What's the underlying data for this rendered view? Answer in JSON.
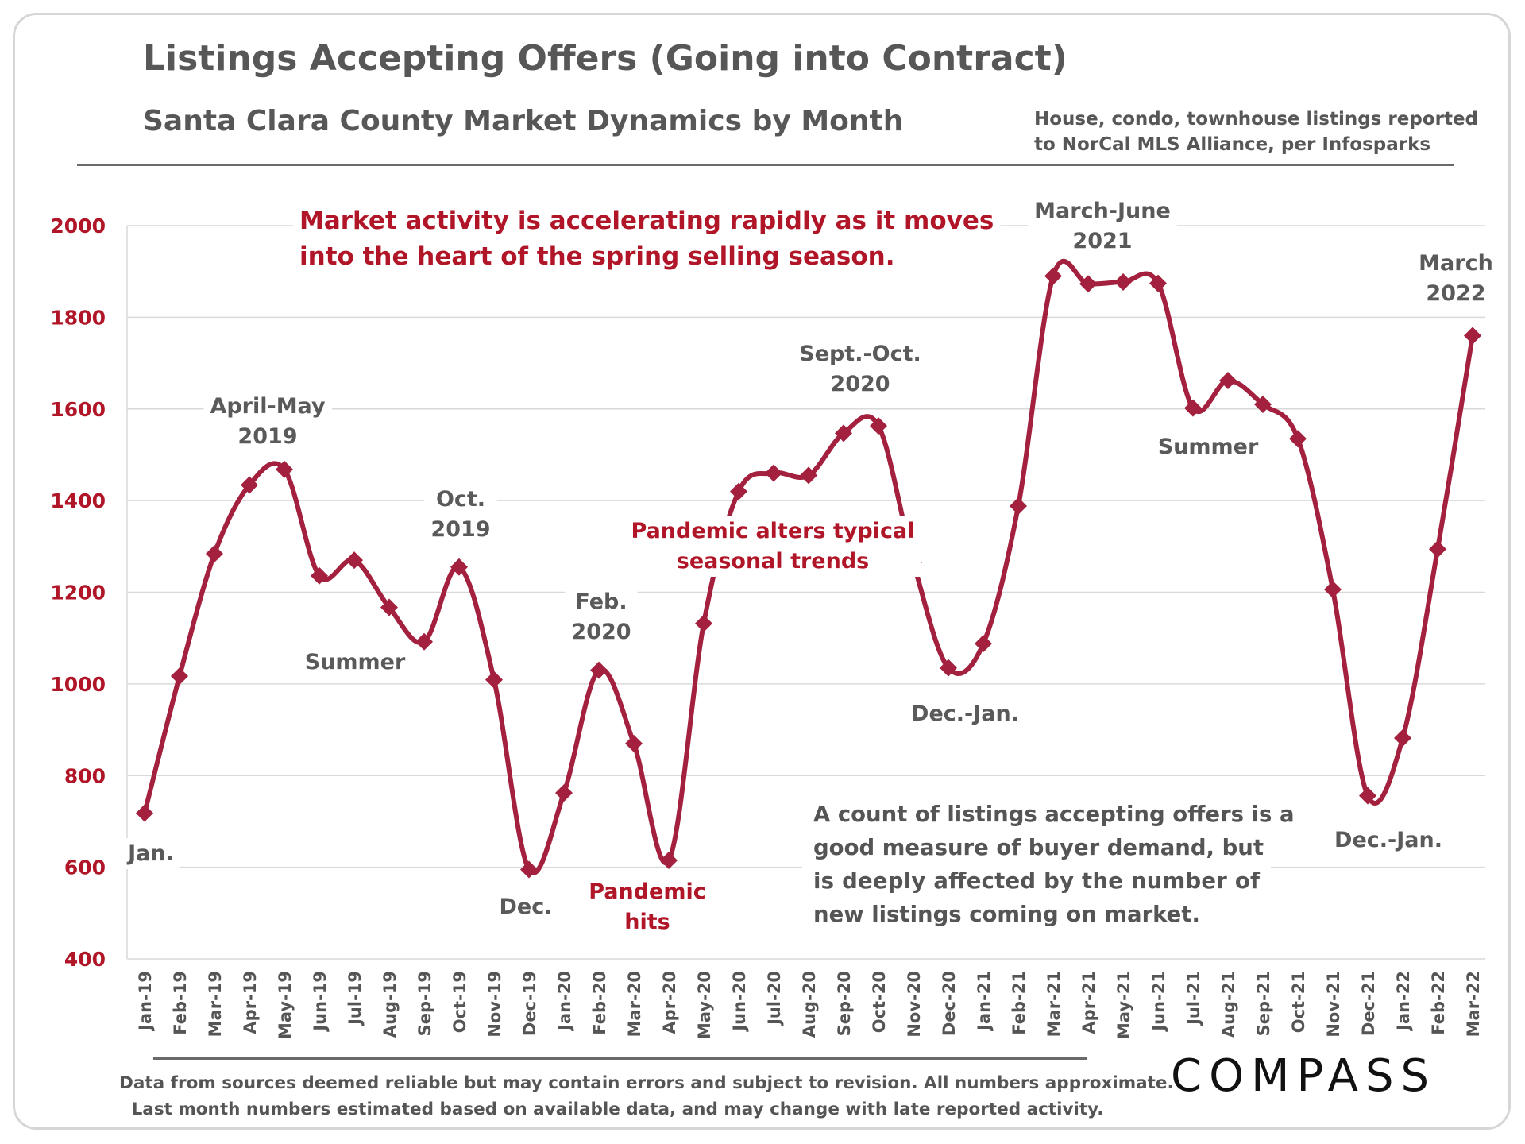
{
  "header": {
    "title": "Listings Accepting Offers (Going into Contract)",
    "subtitle": "Santa Clara County Market Dynamics by Month",
    "source_line1": "House, condo, townhouse listings reported",
    "source_line2": "to NorCal MLS Alliance, per Infosparks"
  },
  "footer": {
    "line1": "Data from sources deemed reliable but may contain errors and subject to revision. All numbers approximate.",
    "line2": "Last month numbers estimated based on available data, and may change with late reported activity.",
    "logo": "COMPASS"
  },
  "colors": {
    "series": "#a3203e",
    "axis_labels": "#b01628",
    "grid": "#d9d9d9"
  },
  "chart_data": {
    "type": "line",
    "title": "Listings Accepting Offers (Going into Contract)",
    "xlabel": "",
    "ylabel": "",
    "ylim": [
      400,
      2000
    ],
    "yticks": [
      400,
      600,
      800,
      1000,
      1200,
      1400,
      1600,
      1800,
      2000
    ],
    "grid": true,
    "categories": [
      "Jan-19",
      "Feb-19",
      "Mar-19",
      "Apr-19",
      "May-19",
      "Jun-19",
      "Jul-19",
      "Aug-19",
      "Sep-19",
      "Oct-19",
      "Nov-19",
      "Dec-19",
      "Jan-20",
      "Feb-20",
      "Mar-20",
      "Apr-20",
      "May-20",
      "Jun-20",
      "Jul-20",
      "Aug-20",
      "Sep-20",
      "Oct-20",
      "Nov-20",
      "Dec-20",
      "Jan-21",
      "Feb-21",
      "Mar-21",
      "Apr-21",
      "May-21",
      "Jun-21",
      "Jul-21",
      "Aug-21",
      "Sep-21",
      "Oct-21",
      "Nov-21",
      "Dec-21",
      "Jan-22",
      "Feb-22",
      "Mar-22"
    ],
    "series": [
      {
        "name": "Listings accepting offers",
        "values": [
          718,
          1017,
          1284,
          1434,
          1468,
          1236,
          1270,
          1167,
          1092,
          1255,
          1009,
          595,
          762,
          1030,
          870,
          615,
          1132,
          1420,
          1460,
          1455,
          1547,
          1563,
          1265,
          1035,
          1088,
          1388,
          1890,
          1873,
          1877,
          1874,
          1602,
          1662,
          1610,
          1535,
          1206,
          756,
          882,
          1294,
          1760
        ]
      }
    ],
    "annotations": [
      {
        "text": [
          "Jan."
        ],
        "style": "gray"
      },
      {
        "text": [
          "April-May",
          "2019"
        ],
        "style": "gray"
      },
      {
        "text": [
          "Summer"
        ],
        "style": "gray"
      },
      {
        "text": [
          "Oct.",
          "2019"
        ],
        "style": "gray"
      },
      {
        "text": [
          "Dec."
        ],
        "style": "gray"
      },
      {
        "text": [
          "Feb.",
          "2020"
        ],
        "style": "gray"
      },
      {
        "text": [
          "Pandemic",
          "hits"
        ],
        "style": "red"
      },
      {
        "text": [
          "Pandemic alters typical",
          "seasonal trends"
        ],
        "style": "red"
      },
      {
        "text": [
          "Sept.-Oct.",
          "2020"
        ],
        "style": "gray"
      },
      {
        "text": [
          "Dec.-Jan."
        ],
        "style": "gray"
      },
      {
        "text": [
          "March-June",
          "2021"
        ],
        "style": "gray"
      },
      {
        "text": [
          "Summer"
        ],
        "style": "gray"
      },
      {
        "text": [
          "Dec.-Jan."
        ],
        "style": "gray"
      },
      {
        "text": [
          "March",
          "2022"
        ],
        "style": "gray"
      },
      {
        "text": [
          "Market activity is accelerating rapidly as it moves",
          "into the heart of the spring selling season."
        ],
        "style": "red-big"
      }
    ],
    "note": [
      "A count of listings accepting offers is a",
      "good measure of buyer demand, but",
      "is deeply affected by the number of",
      "new listings coming on market."
    ]
  }
}
